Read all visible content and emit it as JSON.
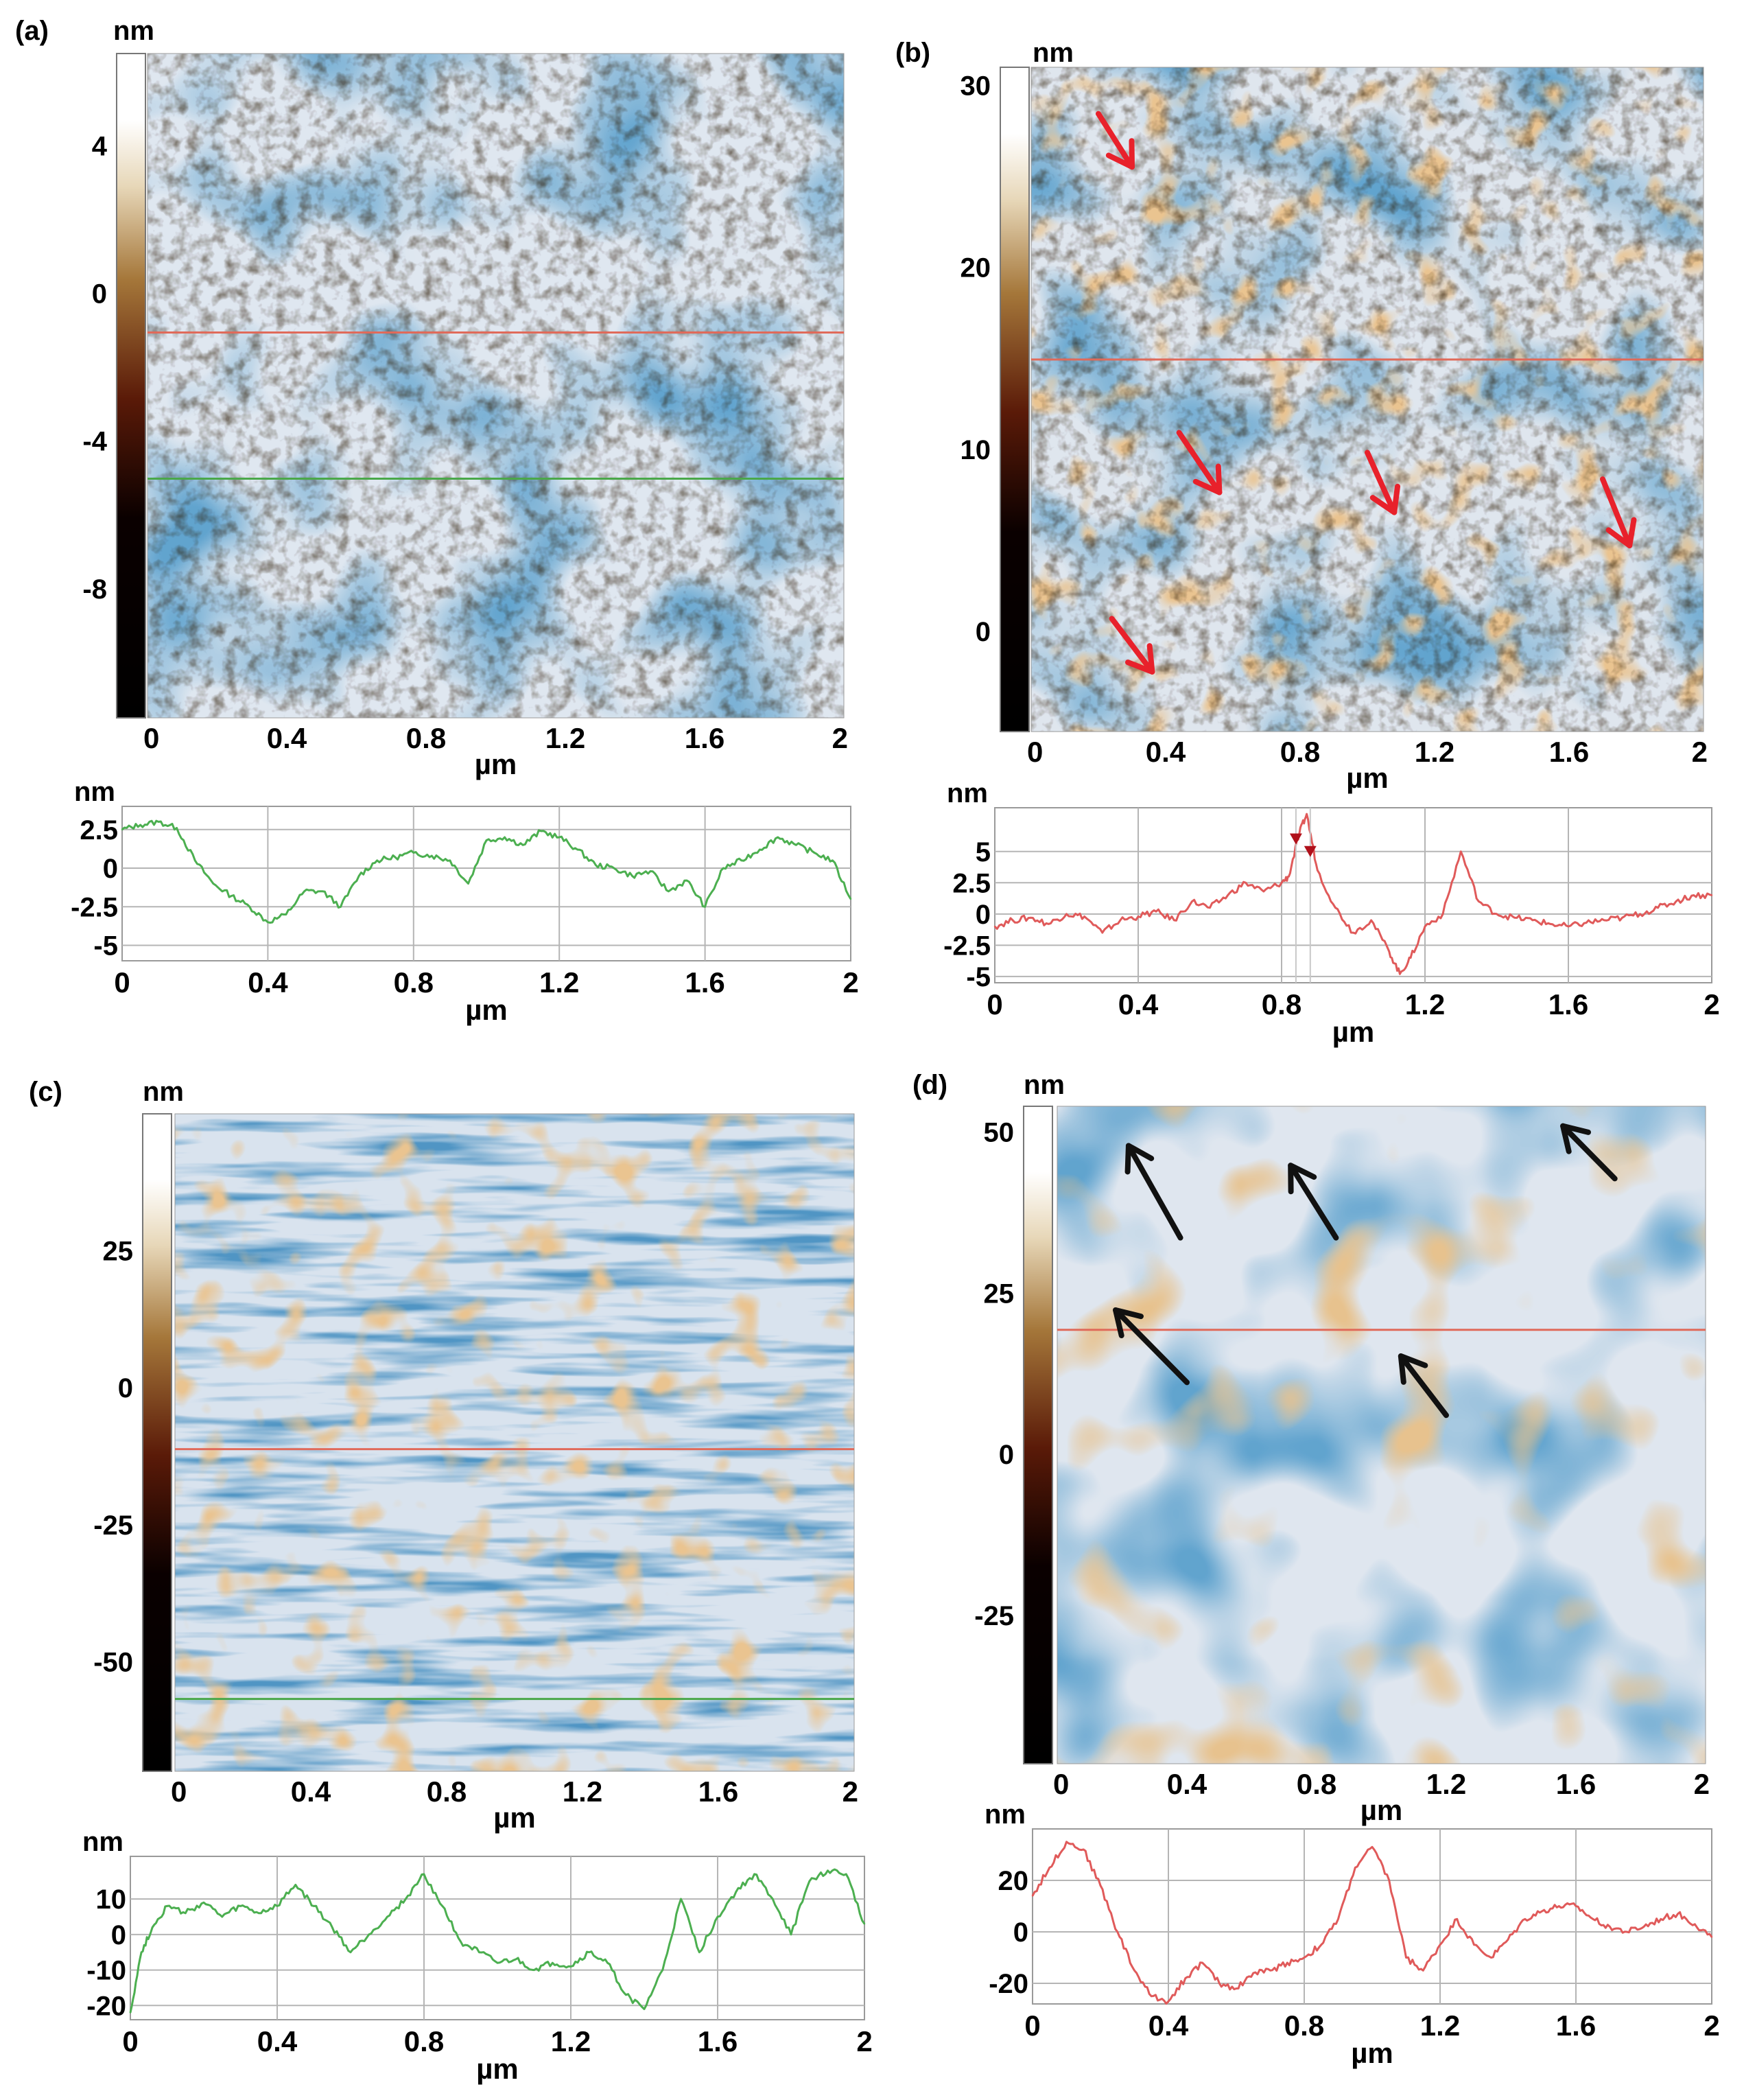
{
  "figure": {
    "axis_unit_label": "µm",
    "height_unit_label": "nm"
  },
  "chart_data": [
    {
      "panel": "(a)",
      "type": "heatmap",
      "xlabel": "µm",
      "x_ticks": [
        "0",
        "0.4",
        "0.8",
        "1.2",
        "1.6",
        "2"
      ],
      "xlim": [
        0,
        2
      ],
      "colorbar": {
        "label": "nm",
        "ticks": [
          "4",
          "0",
          "-4",
          "-8"
        ],
        "range": [
          -11.5,
          6.5
        ]
      },
      "profile_lines": [
        {
          "color": "#e06a5a",
          "y_fraction": 0.42
        },
        {
          "color": "#4aa84a",
          "y_fraction": 0.64
        }
      ],
      "theme": {
        "low": "#1f5f9e",
        "mid": "#dfe7f0",
        "high": "#c98a4b"
      },
      "arrows": []
    },
    {
      "panel": "(b)",
      "type": "heatmap",
      "xlabel": "µm",
      "x_ticks": [
        "0",
        "0.4",
        "0.8",
        "1.2",
        "1.6",
        "2"
      ],
      "xlim": [
        0,
        2
      ],
      "colorbar": {
        "label": "nm",
        "ticks": [
          "30",
          "20",
          "10",
          "0"
        ],
        "range": [
          -5.5,
          31
        ]
      },
      "profile_lines": [
        {
          "color": "#e06a5a",
          "y_fraction": 0.44
        }
      ],
      "theme": {
        "low": "#2f6faa",
        "mid": "#dfe6ee",
        "high": "#d28e48"
      },
      "arrows": [
        {
          "color": "#e8212b",
          "from": [
            0.1,
            0.07
          ],
          "to": [
            0.15,
            0.15
          ]
        },
        {
          "color": "#e8212b",
          "from": [
            0.22,
            0.55
          ],
          "to": [
            0.28,
            0.64
          ]
        },
        {
          "color": "#e8212b",
          "from": [
            0.5,
            0.58
          ],
          "to": [
            0.54,
            0.67
          ]
        },
        {
          "color": "#e8212b",
          "from": [
            0.85,
            0.62
          ],
          "to": [
            0.89,
            0.72
          ]
        },
        {
          "color": "#e8212b",
          "from": [
            0.12,
            0.83
          ],
          "to": [
            0.18,
            0.91
          ]
        }
      ]
    },
    {
      "panel": "(c)",
      "type": "heatmap",
      "xlabel": "µm",
      "x_ticks": [
        "0",
        "0.4",
        "0.8",
        "1.2",
        "1.6",
        "2"
      ],
      "xlim": [
        0,
        2
      ],
      "colorbar": {
        "label": "nm",
        "ticks": [
          "25",
          "0",
          "-25",
          "-50"
        ],
        "range": [
          -70,
          50
        ]
      },
      "profile_lines": [
        {
          "color": "#e06a5a",
          "y_fraction": 0.51
        },
        {
          "color": "#4aa84a",
          "y_fraction": 0.89
        }
      ],
      "theme": {
        "low": "#1e5a96",
        "mid": "#d9e3ee",
        "high": "#cc8a46"
      },
      "arrows": []
    },
    {
      "panel": "(d)",
      "type": "heatmap",
      "xlabel": "µm",
      "x_ticks": [
        "0",
        "0.4",
        "0.8",
        "1.2",
        "1.6",
        "2"
      ],
      "xlim": [
        0,
        2
      ],
      "colorbar": {
        "label": "nm",
        "ticks": [
          "50",
          "25",
          "0",
          "-25"
        ],
        "range": [
          -48,
          54
        ]
      },
      "profile_lines": [
        {
          "color": "#e06a5a",
          "y_fraction": 0.34
        }
      ],
      "theme": {
        "low": "#1d5690",
        "mid": "#dfe6ef",
        "high": "#cf8b45"
      },
      "arrows": [
        {
          "color": "#111111",
          "from": [
            0.19,
            0.2
          ],
          "to": [
            0.11,
            0.06
          ]
        },
        {
          "color": "#111111",
          "from": [
            0.43,
            0.2
          ],
          "to": [
            0.36,
            0.09
          ]
        },
        {
          "color": "#111111",
          "from": [
            0.86,
            0.11
          ],
          "to": [
            0.78,
            0.03
          ]
        },
        {
          "color": "#111111",
          "from": [
            0.2,
            0.42
          ],
          "to": [
            0.09,
            0.31
          ]
        },
        {
          "color": "#111111",
          "from": [
            0.6,
            0.47
          ],
          "to": [
            0.53,
            0.38
          ]
        }
      ]
    },
    {
      "panel": "(a) profile",
      "type": "line",
      "xlabel": "µm",
      "ylabel": "nm",
      "x_ticks": [
        "0",
        "0.4",
        "0.8",
        "1.2",
        "1.6",
        "2"
      ],
      "y_ticks": [
        "2.5",
        "0",
        "-2.5",
        "-5"
      ],
      "xlim": [
        0,
        2
      ],
      "ylim": [
        -6,
        4
      ],
      "grid": true,
      "color": "#4caf50",
      "x": [
        0,
        0.05,
        0.1,
        0.15,
        0.2,
        0.25,
        0.3,
        0.35,
        0.4,
        0.45,
        0.5,
        0.55,
        0.6,
        0.65,
        0.7,
        0.75,
        0.8,
        0.85,
        0.9,
        0.95,
        1.0,
        1.05,
        1.1,
        1.15,
        1.2,
        1.25,
        1.3,
        1.35,
        1.4,
        1.45,
        1.5,
        1.55,
        1.6,
        1.65,
        1.7,
        1.75,
        1.8,
        1.85,
        1.9,
        1.95,
        2.0
      ],
      "y": [
        2.5,
        2.8,
        3.0,
        2.6,
        0.5,
        -1.0,
        -1.8,
        -2.5,
        -3.5,
        -3.0,
        -1.5,
        -1.5,
        -2.5,
        -0.5,
        0.5,
        0.7,
        1.0,
        0.8,
        0.5,
        -1.0,
        1.8,
        2.0,
        1.5,
        2.4,
        2.0,
        1.2,
        0.2,
        0.0,
        -0.5,
        -0.2,
        -1.5,
        -0.8,
        -2.5,
        0.0,
        0.5,
        1.2,
        2.0,
        1.5,
        1.0,
        0.5,
        -2.0
      ]
    },
    {
      "panel": "(b) profile",
      "type": "line",
      "xlabel": "µm",
      "ylabel": "nm",
      "x_ticks": [
        "0",
        "0.4",
        "0.8",
        "1.2",
        "1.6",
        "2"
      ],
      "y_ticks": [
        "5",
        "2.5",
        "0",
        "-2.5",
        "-5"
      ],
      "xlim": [
        0,
        2
      ],
      "ylim": [
        -5.5,
        8.5
      ],
      "grid": true,
      "color": "#e05a5a",
      "x": [
        0,
        0.05,
        0.1,
        0.15,
        0.2,
        0.25,
        0.3,
        0.35,
        0.4,
        0.45,
        0.5,
        0.55,
        0.6,
        0.65,
        0.7,
        0.75,
        0.8,
        0.82,
        0.85,
        0.87,
        0.9,
        0.95,
        1.0,
        1.05,
        1.1,
        1.13,
        1.16,
        1.2,
        1.25,
        1.3,
        1.35,
        1.4,
        1.45,
        1.5,
        1.55,
        1.6,
        1.65,
        1.7,
        1.75,
        1.8,
        1.85,
        1.9,
        1.95,
        2.0
      ],
      "y": [
        -1.0,
        -0.5,
        -0.3,
        -0.8,
        0.0,
        -0.2,
        -1.5,
        -0.5,
        -0.2,
        0.2,
        -0.5,
        1.0,
        0.5,
        1.5,
        2.5,
        1.8,
        2.5,
        3.0,
        6.5,
        8.0,
        3.5,
        0.5,
        -1.5,
        -0.5,
        -3.0,
        -4.8,
        -3.5,
        -1.0,
        0.0,
        5.0,
        1.0,
        0.0,
        -0.3,
        -0.5,
        -0.8,
        -1.0,
        -0.7,
        -0.5,
        -0.3,
        0.0,
        0.5,
        1.0,
        1.5,
        1.5
      ]
    },
    {
      "panel": "(c) profile",
      "type": "line",
      "xlabel": "µm",
      "ylabel": "nm",
      "x_ticks": [
        "0",
        "0.4",
        "0.8",
        "1.2",
        "1.6",
        "2"
      ],
      "y_ticks": [
        "10",
        "0",
        "-10",
        "-20"
      ],
      "xlim": [
        0,
        2
      ],
      "ylim": [
        -24,
        22
      ],
      "grid": true,
      "color": "#4caf50",
      "x": [
        0,
        0.03,
        0.06,
        0.1,
        0.15,
        0.2,
        0.25,
        0.3,
        0.35,
        0.4,
        0.45,
        0.5,
        0.55,
        0.6,
        0.65,
        0.7,
        0.75,
        0.8,
        0.85,
        0.9,
        0.95,
        1.0,
        1.05,
        1.1,
        1.15,
        1.2,
        1.25,
        1.3,
        1.35,
        1.4,
        1.45,
        1.5,
        1.55,
        1.6,
        1.65,
        1.7,
        1.75,
        1.8,
        1.85,
        1.9,
        1.95,
        2.0
      ],
      "y": [
        -22,
        -5,
        2,
        8,
        6,
        9,
        5,
        8,
        6,
        8,
        14,
        8,
        2,
        -5,
        0,
        5,
        10,
        17,
        8,
        -2,
        -5,
        -8,
        -7,
        -10,
        -8,
        -9,
        -5,
        -8,
        -17,
        -21,
        -10,
        10,
        -5,
        5,
        12,
        17,
        10,
        0,
        15,
        18,
        17,
        3
      ]
    },
    {
      "panel": "(d) profile",
      "type": "line",
      "xlabel": "µm",
      "ylabel": "nm",
      "x_ticks": [
        "0",
        "0.4",
        "0.8",
        "1.2",
        "1.6",
        "2"
      ],
      "y_ticks": [
        "20",
        "0",
        "-20"
      ],
      "xlim": [
        0,
        2
      ],
      "ylim": [
        -28,
        40
      ],
      "grid": true,
      "color": "#e05a5a",
      "x": [
        0,
        0.05,
        0.1,
        0.15,
        0.2,
        0.25,
        0.3,
        0.35,
        0.4,
        0.45,
        0.5,
        0.55,
        0.6,
        0.65,
        0.7,
        0.75,
        0.8,
        0.85,
        0.9,
        0.95,
        1.0,
        1.05,
        1.1,
        1.15,
        1.2,
        1.25,
        1.3,
        1.35,
        1.4,
        1.45,
        1.5,
        1.55,
        1.6,
        1.65,
        1.7,
        1.75,
        1.8,
        1.85,
        1.9,
        1.95,
        2.0
      ],
      "y": [
        14,
        25,
        35,
        32,
        18,
        0,
        -15,
        -25,
        -27,
        -18,
        -12,
        -20,
        -22,
        -16,
        -15,
        -12,
        -10,
        -5,
        5,
        25,
        33,
        20,
        -10,
        -15,
        -5,
        5,
        -5,
        -10,
        -3,
        5,
        8,
        10,
        10,
        5,
        2,
        0,
        2,
        5,
        7,
        3,
        -2
      ]
    }
  ]
}
